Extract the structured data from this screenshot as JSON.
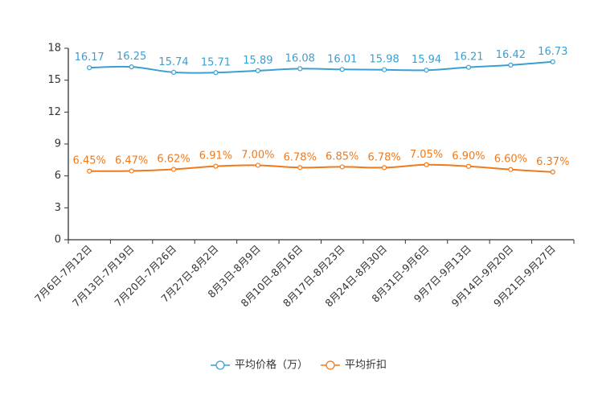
{
  "chart_data": {
    "type": "line",
    "categories": [
      "7月6日-7月12日",
      "7月13日-7月19日",
      "7月20日-7月26日",
      "7月27日-8月2日",
      "8月3日-8月9日",
      "8月10日-8月16日",
      "8月17日-8月23日",
      "8月24日-8月30日",
      "8月31日-9月6日",
      "9月7日-9月13日",
      "9月14日-9月20日",
      "9月21日-9月27日"
    ],
    "series": [
      {
        "name": "平均价格（万）",
        "color": "#3a9fd1",
        "values": [
          16.17,
          16.25,
          15.74,
          15.71,
          15.89,
          16.08,
          16.01,
          15.98,
          15.94,
          16.21,
          16.42,
          16.73
        ],
        "labels": [
          "16.17",
          "16.25",
          "15.74",
          "15.71",
          "15.89",
          "16.08",
          "16.01",
          "15.98",
          "15.94",
          "16.21",
          "16.42",
          "16.73"
        ]
      },
      {
        "name": "平均折扣",
        "color": "#f07a1b",
        "values": [
          6.45,
          6.47,
          6.62,
          6.91,
          7.0,
          6.78,
          6.85,
          6.78,
          7.05,
          6.9,
          6.6,
          6.37
        ],
        "labels": [
          "6.45%",
          "6.47%",
          "6.62%",
          "6.91%",
          "7.00%",
          "6.78%",
          "6.85%",
          "6.78%",
          "7.05%",
          "6.90%",
          "6.60%",
          "6.37%"
        ]
      }
    ],
    "yticks": [
      "0",
      "3",
      "6",
      "9",
      "12",
      "15",
      "18"
    ],
    "ylim": [
      0,
      18
    ],
    "title": "",
    "xlabel": "",
    "ylabel": "",
    "legend": "bottom-center",
    "grid": false
  }
}
